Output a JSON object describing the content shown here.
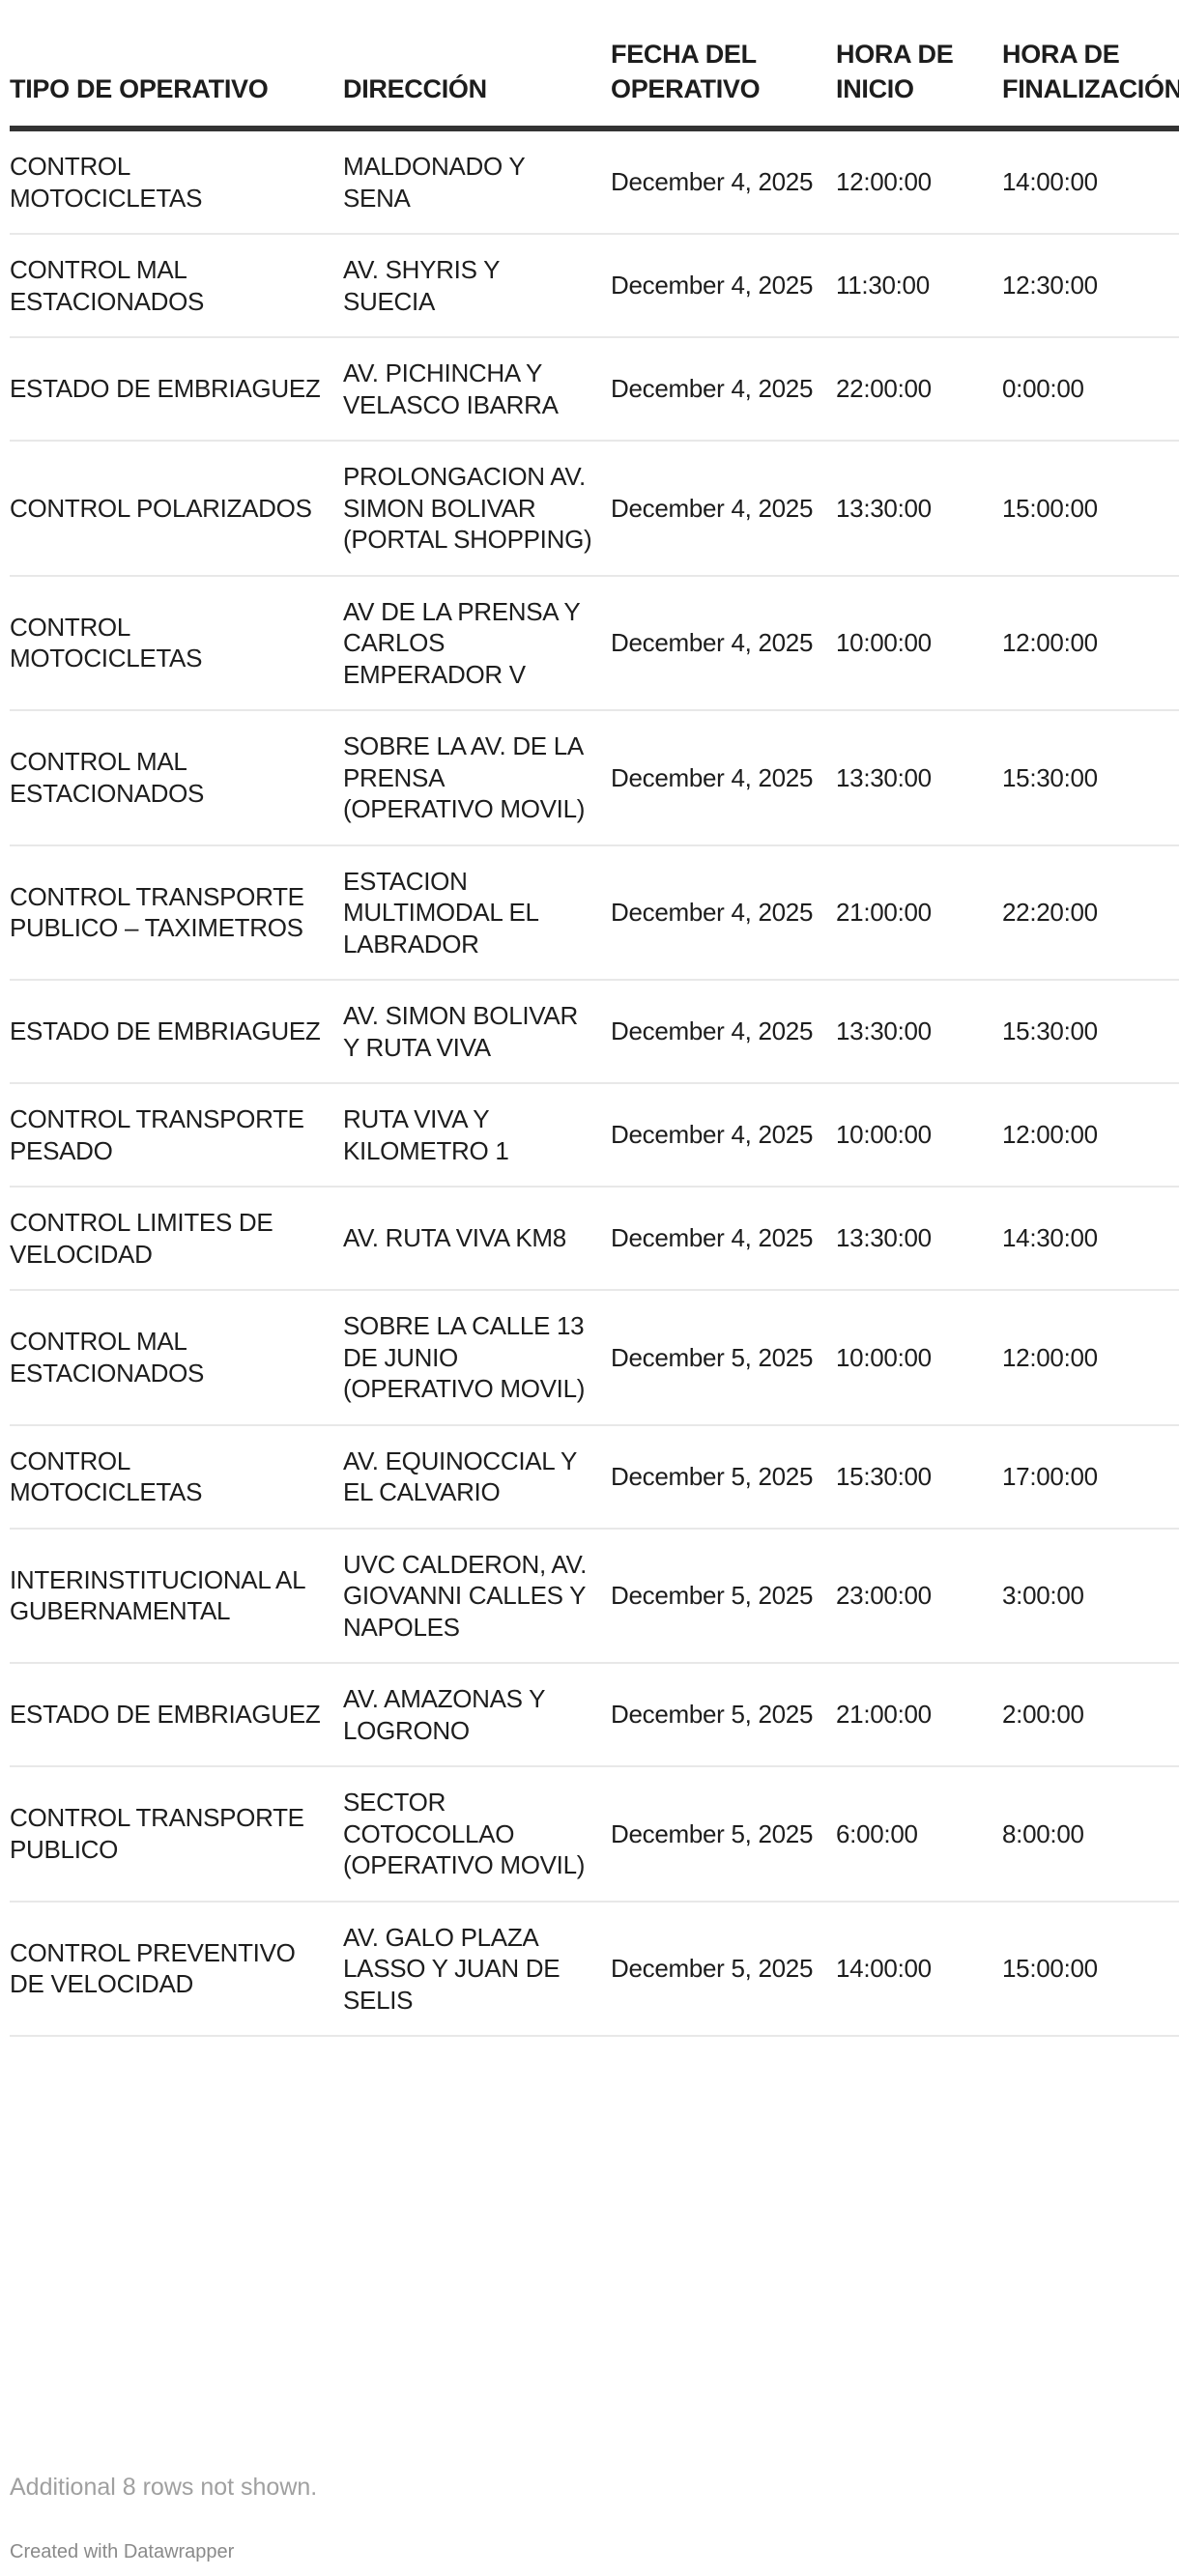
{
  "table": {
    "headers": [
      "TIPO DE OPERATIVO",
      "DIRECCIÓN",
      "FECHA DEL OPERATIVO",
      "HORA DE INICIO",
      "HORA DE FINALIZACIÓN"
    ],
    "rows": [
      [
        "CONTROL MOTOCICLETAS",
        "MALDONADO Y SENA",
        "December 4, 2025",
        "12:00:00",
        "14:00:00"
      ],
      [
        "CONTROL MAL ESTACIONADOS",
        "AV. SHYRIS Y SUECIA",
        "December 4, 2025",
        "11:30:00",
        "12:30:00"
      ],
      [
        "ESTADO DE EMBRIAGUEZ",
        "AV. PICHINCHA Y VELASCO IBARRA",
        "December 4, 2025",
        "22:00:00",
        "0:00:00"
      ],
      [
        "CONTROL POLARIZADOS",
        "PROLONGACION AV. SIMON BOLIVAR (PORTAL SHOPPING)",
        "December 4, 2025",
        "13:30:00",
        "15:00:00"
      ],
      [
        "CONTROL MOTOCICLETAS",
        "AV DE LA PRENSA Y CARLOS EMPERADOR V",
        "December 4, 2025",
        "10:00:00",
        "12:00:00"
      ],
      [
        "CONTROL MAL ESTACIONADOS",
        "SOBRE LA AV. DE LA PRENSA (OPERATIVO MOVIL)",
        "December 4, 2025",
        "13:30:00",
        "15:30:00"
      ],
      [
        "CONTROL TRANSPORTE PUBLICO – TAXIMETROS",
        "ESTACION MULTIMODAL EL LABRADOR",
        "December 4, 2025",
        "21:00:00",
        "22:20:00"
      ],
      [
        "ESTADO DE EMBRIAGUEZ",
        "AV. SIMON BOLIVAR Y RUTA VIVA",
        "December 4, 2025",
        "13:30:00",
        "15:30:00"
      ],
      [
        "CONTROL TRANSPORTE PESADO",
        "RUTA VIVA Y KILOMETRO 1",
        "December 4, 2025",
        "10:00:00",
        "12:00:00"
      ],
      [
        "CONTROL LIMITES DE VELOCIDAD",
        "AV. RUTA VIVA KM8",
        "December 4, 2025",
        "13:30:00",
        "14:30:00"
      ],
      [
        "CONTROL MAL ESTACIONADOS",
        "SOBRE LA CALLE 13 DE JUNIO (OPERATIVO MOVIL)",
        "December 5, 2025",
        "10:00:00",
        "12:00:00"
      ],
      [
        "CONTROL MOTOCICLETAS",
        "AV. EQUINOCCIAL Y EL CALVARIO",
        "December 5, 2025",
        "15:30:00",
        "17:00:00"
      ],
      [
        "INTERINSTITUCIONAL AL GUBERNAMENTAL",
        "UVC CALDERON, AV. GIOVANNI CALLES Y NAPOLES",
        "December 5, 2025",
        "23:00:00",
        "3:00:00"
      ],
      [
        "ESTADO DE EMBRIAGUEZ",
        "AV. AMAZONAS Y LOGRONO",
        "December 5, 2025",
        "21:00:00",
        "2:00:00"
      ],
      [
        "CONTROL TRANSPORTE PUBLICO",
        "SECTOR COTOCOLLAO (OPERATIVO MOVIL)",
        "December 5, 2025",
        "6:00:00",
        "8:00:00"
      ],
      [
        "CONTROL PREVENTIVO DE VELOCIDAD",
        "AV. GALO PLAZA LASSO Y JUAN DE SELIS",
        "December 5, 2025",
        "14:00:00",
        "15:00:00"
      ]
    ]
  },
  "footer": {
    "notes": "Additional 8 rows not shown.",
    "credit": "Created with Datawrapper"
  }
}
